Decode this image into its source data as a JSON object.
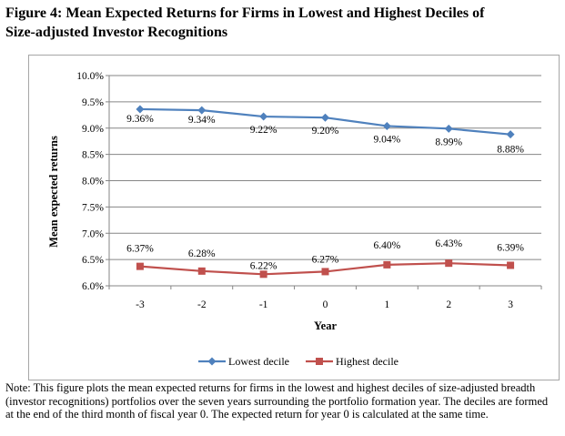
{
  "figure": {
    "title_line1": "Figure 4: Mean Expected Returns for Firms in Lowest and Highest Deciles of",
    "title_line2": "Size-adjusted Investor Recognitions",
    "note": "Note: This figure plots the mean expected returns for firms in the lowest and highest deciles of size-adjusted breadth (investor recognitions) portfolios over the seven years surrounding the portfolio formation year. The deciles are formed at the end of the third month of fiscal year 0. The expected return for year 0 is calculated at the same time."
  },
  "chart_data": {
    "type": "line",
    "title": "",
    "xlabel": "Year",
    "ylabel": "Mean expected returns",
    "categories": [
      "-3",
      "-2",
      "-1",
      "0",
      "1",
      "2",
      "3"
    ],
    "ylim": [
      6.0,
      10.0
    ],
    "yticks": [
      6.0,
      6.5,
      7.0,
      7.5,
      8.0,
      8.5,
      9.0,
      9.5,
      10.0
    ],
    "ytick_labels": [
      "6.0%",
      "6.5%",
      "7.0%",
      "7.5%",
      "8.0%",
      "8.5%",
      "9.0%",
      "9.5%",
      "10.0%"
    ],
    "grid": true,
    "legend_position": "bottom",
    "series": [
      {
        "name": "Lowest decile",
        "color": "#4f81bd",
        "marker": "diamond",
        "values": [
          9.36,
          9.34,
          9.22,
          9.2,
          9.04,
          8.99,
          8.88
        ],
        "labels": [
          "9.36%",
          "9.34%",
          "9.22%",
          "9.20%",
          "9.04%",
          "8.99%",
          "8.88%"
        ]
      },
      {
        "name": "Highest decile",
        "color": "#c0504d",
        "marker": "square",
        "values": [
          6.37,
          6.28,
          6.22,
          6.27,
          6.4,
          6.43,
          6.39
        ],
        "labels": [
          "6.37%",
          "6.28%",
          "6.22%",
          "6.27%",
          "6.40%",
          "6.43%",
          "6.39%"
        ]
      }
    ]
  }
}
